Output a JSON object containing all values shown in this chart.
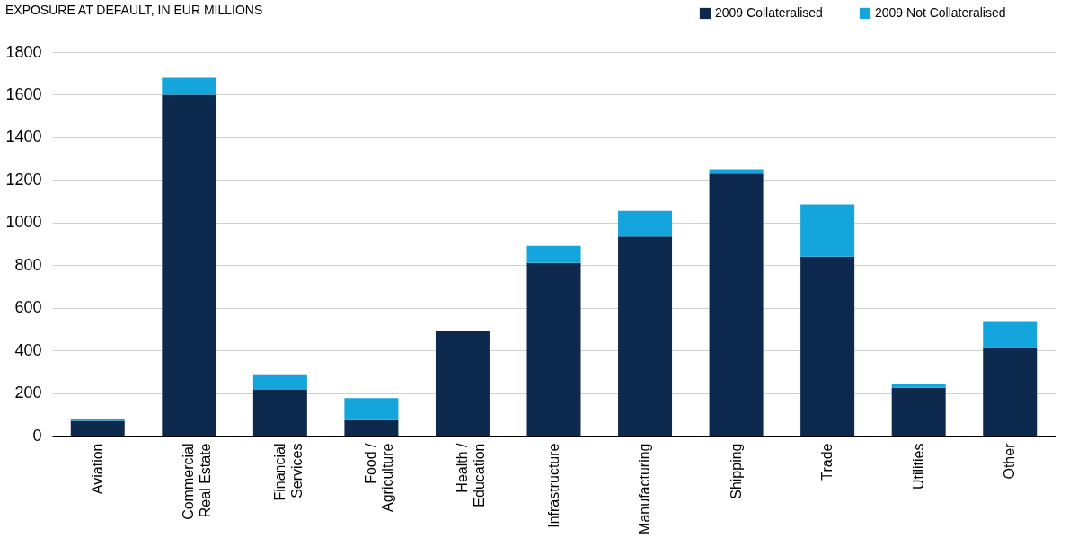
{
  "chart_data": {
    "type": "bar",
    "title": "EXPOSURE AT DEFAULT, IN EUR MILLIONS",
    "categories": [
      "Aviation",
      "Commercial\nReal Estate",
      "Financial\nServices",
      "Food /\nAgriculture",
      "Health /\nEducation",
      "Infrastructure",
      "Manufacturing",
      "Shipping",
      "Trade",
      "Utilities",
      "Other"
    ],
    "series": [
      {
        "name": "2009 Collateralised",
        "color": "#0d2a4e",
        "values": [
          70,
          1600,
          215,
          73,
          490,
          810,
          935,
          1230,
          840,
          225,
          415
        ]
      },
      {
        "name": "2009 Not Collateralised",
        "color": "#14a5dc",
        "values": [
          10,
          80,
          73,
          103,
          null,
          80,
          120,
          20,
          245,
          15,
          122
        ]
      }
    ],
    "stacked": true,
    "ylim": [
      0,
      1800
    ],
    "yticks": [
      0,
      200,
      400,
      600,
      800,
      1000,
      1200,
      1400,
      1600,
      1800
    ],
    "grid": "y",
    "legend": "top right"
  }
}
